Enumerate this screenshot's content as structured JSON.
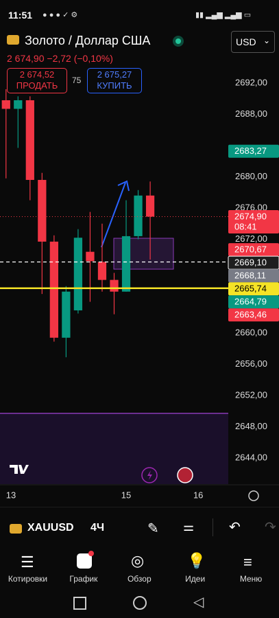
{
  "status_bar": {
    "time": "11:51"
  },
  "header": {
    "title": "Золото / Доллар США",
    "currency": "USD",
    "price": "2 674,90",
    "change": "−2,72 (−0,10%)"
  },
  "trade": {
    "sell": {
      "price": "2 674,52",
      "label": "ПРОДАТЬ"
    },
    "spread": "75",
    "buy": {
      "price": "2 675,27",
      "label": "КУПИТЬ"
    }
  },
  "chart_data": {
    "type": "candlestick",
    "categories": [
      null,
      null,
      null,
      null,
      null,
      null,
      null,
      null,
      null,
      null,
      null,
      null,
      null
    ],
    "open": [
      2689.8,
      2688.7,
      2689.8,
      2679.6,
      2671.7,
      2659.4,
      2662.9,
      2670.4,
      2669.1,
      2666.8,
      2665.3,
      2672.4,
      2677.6
    ],
    "high": [
      2691.2,
      2690.3,
      2690.3,
      2680.5,
      2672.5,
      2666.0,
      2673.3,
      2675.5,
      2674.0,
      2667.7,
      2677.0,
      2678.3,
      2679.4
    ],
    "low": [
      2679.8,
      2683.7,
      2677.0,
      2665.0,
      2658.9,
      2656.9,
      2662.5,
      2664.0,
      2665.3,
      2662.4,
      2665.3,
      2672.0,
      2669.4
    ],
    "close": [
      2688.7,
      2689.8,
      2679.6,
      2671.7,
      2659.4,
      2665.3,
      2672.2,
      2669.2,
      2666.8,
      2665.3,
      2672.4,
      2677.6,
      2674.9
    ],
    "up_color": "#089981",
    "down_color": "#f23645",
    "ylim": [
      2640.66,
      2695.6
    ],
    "yticks": [
      {
        "value": 2692,
        "label": "2692,00"
      },
      {
        "value": 2688,
        "label": "2688,00"
      },
      {
        "value": 2680,
        "label": "2680,00"
      },
      {
        "value": 2676,
        "label": "2676,00"
      },
      {
        "value": 2672,
        "label": "2672,00"
      },
      {
        "value": 2660,
        "label": "2660,00"
      },
      {
        "value": 2656,
        "label": "2656,00"
      },
      {
        "value": 2652,
        "label": "2652,00"
      },
      {
        "value": 2648,
        "label": "2648,00"
      },
      {
        "value": 2644,
        "label": "2644,00"
      }
    ],
    "xlim": [
      -0.5,
      18.5
    ],
    "xticks": [
      {
        "value": 0,
        "label": "13"
      },
      {
        "value": 10,
        "label": "15"
      },
      {
        "value": 16,
        "label": "16"
      }
    ],
    "price_tags": [
      {
        "value": 2683.27,
        "label": "2683,27",
        "color": "#089981",
        "text_color": "#ffffff"
      },
      {
        "value": 2674.9,
        "label": "2674,90",
        "countdown": "08:41",
        "color": "#f23645",
        "text_color": "#ffffff",
        "line": "dotted"
      },
      {
        "value": 2670.67,
        "label": "2670,67",
        "color": "#f23645",
        "text_color": "#ffffff"
      },
      {
        "value": 2669.1,
        "label": "2669,10",
        "color": "#1e1e1e",
        "text_color": "#ffffff",
        "line": "dashed"
      },
      {
        "value": 2668.11,
        "label": "2668,11",
        "color": "#787b86",
        "text_color": "#ffffff"
      },
      {
        "value": 2665.74,
        "label": "2665,74",
        "color": "#f5e326",
        "text_color": "#000000",
        "line": "solid"
      },
      {
        "value": 2664.79,
        "label": "2664,79",
        "color": "#089981",
        "text_color": "#ffffff"
      },
      {
        "value": 2663.46,
        "label": "2663,46",
        "color": "#f23645",
        "text_color": "#ffffff"
      }
    ]
  },
  "toolbar": {
    "symbol": "XAUUSD",
    "interval": "4Ч"
  },
  "nav": {
    "items": [
      "Котировки",
      "График",
      "Обзор",
      "Идеи",
      "Меню"
    ]
  }
}
